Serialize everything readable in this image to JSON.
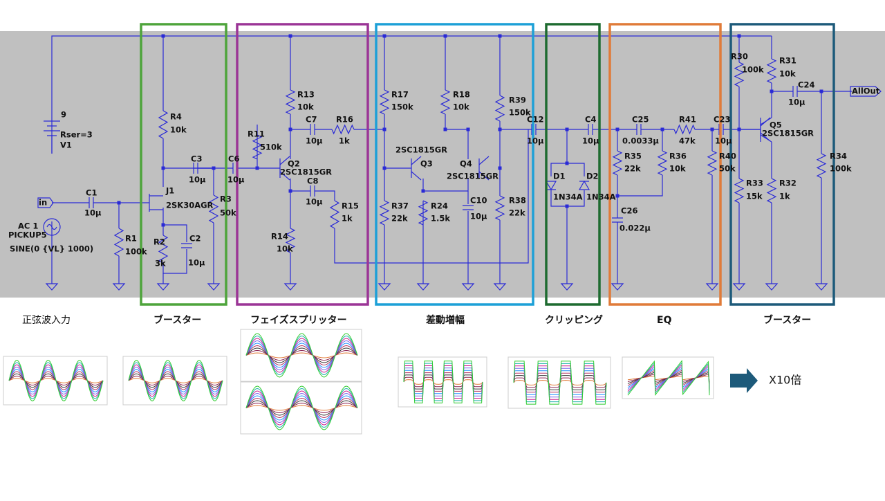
{
  "schematic": {
    "labels": [
      "9",
      "Rser=3",
      "V1",
      "in",
      "AC 1",
      "PICKUP5",
      "SINE(0 {VL} 1000)",
      "C1",
      "10µ",
      "R1",
      "100k",
      "R4",
      "10k",
      "J1",
      "2SK30AGR",
      "R2",
      "3k",
      "C2",
      "10µ",
      "C3",
      "10µ",
      "R3",
      "50k",
      "C6",
      "10µ",
      "R11",
      "510k",
      "Q2",
      "2SC1815GR",
      "R13",
      "10k",
      "C7",
      "10µ",
      "R16",
      "1k",
      "C8",
      "10µ",
      "R15",
      "1k",
      "R14",
      "10k",
      "R17",
      "150k",
      "R18",
      "10k",
      "R39",
      "150k",
      "2SC1815GR",
      "Q3",
      "Q4",
      "2SC1815GR",
      "R37",
      "22k",
      "R24",
      "1.5k",
      "C10",
      "10µ",
      "R38",
      "22k",
      "C12",
      "10µ",
      "C4",
      "10µ",
      "D1",
      "1N34A",
      "D2",
      "1N34A",
      "C25",
      "0.0033µ",
      "R41",
      "47k",
      "C23",
      "10µ",
      "R35",
      "22k",
      "R36",
      "10k",
      "R40",
      "50k",
      "C26",
      "0.022µ",
      "R30",
      "100k",
      "R31",
      "10k",
      "C24",
      "10µ",
      "AllOut",
      "Q5",
      "2SC1815GR",
      "R34",
      "100k",
      "R33",
      "15k",
      "R32",
      "1k"
    ]
  },
  "sections": [
    "正弦波入力",
    "ブースター",
    "フェイズスプリッター",
    "差動増幅",
    "クリッピング",
    "EQ",
    "ブースター"
  ],
  "note": "X10倍"
}
